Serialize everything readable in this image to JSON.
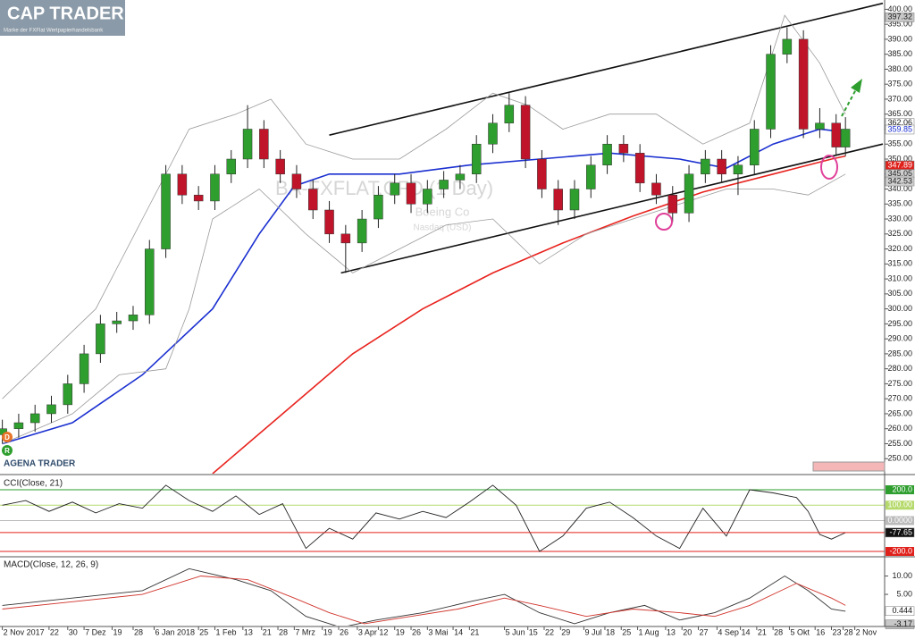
{
  "header": {
    "logo": "CAP TRADER",
    "tagline": "Marke der FXFlat Wertpapierhandelsbank"
  },
  "watermark": {
    "symbol": "BA-FXFLAT.CFD (1 Day)",
    "name": "Boeing Co",
    "exchange": "Nasdaq (USD)"
  },
  "branding": "AGENA TRADER",
  "badges": [
    "D",
    "R"
  ],
  "chart_data": [
    {
      "type": "candlestick",
      "up_color": "#2e9e2e",
      "down_color": "#c0142a",
      "x": [
        0,
        7,
        14,
        21,
        28,
        35,
        42,
        49,
        56,
        63,
        70,
        77,
        84,
        91,
        98,
        105,
        112,
        119,
        126,
        133,
        140,
        147,
        154,
        161,
        168,
        175,
        182,
        189,
        196,
        203,
        210,
        217,
        224,
        231,
        238,
        245,
        252,
        259,
        266,
        273,
        280,
        287,
        294,
        301,
        308,
        315,
        322,
        329,
        336,
        343,
        350,
        357,
        361
      ],
      "open": [
        258,
        260,
        262,
        265,
        268,
        275,
        285,
        295,
        296,
        298,
        320,
        345,
        338,
        336,
        345,
        350,
        360,
        350,
        345,
        340,
        333,
        325,
        322,
        330,
        338,
        342,
        335,
        340,
        343,
        345,
        355,
        362,
        368,
        350,
        340,
        333,
        340,
        348,
        355,
        352,
        342,
        338,
        332,
        345,
        350,
        345,
        348,
        360,
        385,
        390,
        360,
        362,
        354
      ],
      "high": [
        263,
        265,
        268,
        271,
        278,
        288,
        298,
        299,
        301,
        323,
        348,
        348,
        341,
        348,
        353,
        368,
        363,
        353,
        348,
        343,
        336,
        328,
        333,
        341,
        345,
        345,
        343,
        346,
        348,
        358,
        365,
        372,
        371,
        353,
        343,
        343,
        351,
        358,
        358,
        355,
        345,
        341,
        348,
        353,
        353,
        351,
        363,
        388,
        394,
        393,
        367,
        365,
        364
      ],
      "low": [
        255,
        257,
        259,
        262,
        265,
        272,
        282,
        292,
        293,
        295,
        317,
        335,
        333,
        333,
        342,
        347,
        347,
        342,
        337,
        330,
        322,
        312,
        319,
        327,
        335,
        332,
        332,
        337,
        340,
        342,
        352,
        359,
        347,
        337,
        328,
        330,
        337,
        345,
        349,
        339,
        335,
        329,
        329,
        342,
        342,
        338,
        345,
        357,
        382,
        357,
        357,
        351,
        351
      ],
      "close": [
        260,
        262,
        265,
        268,
        275,
        285,
        295,
        296,
        298,
        320,
        345,
        338,
        336,
        345,
        350,
        360,
        350,
        345,
        340,
        333,
        325,
        322,
        330,
        338,
        342,
        335,
        340,
        343,
        345,
        355,
        362,
        368,
        350,
        340,
        333,
        340,
        348,
        355,
        352,
        342,
        338,
        332,
        345,
        350,
        345,
        348,
        360,
        385,
        390,
        360,
        362,
        354,
        360
      ],
      "overlays": [
        {
          "color": "#1a2fd0",
          "x": [
            0,
            30,
            60,
            90,
            110,
            125,
            140,
            170,
            200,
            230,
            260,
            290,
            310,
            330,
            350,
            361
          ],
          "values": [
            255,
            262,
            278,
            300,
            325,
            341,
            345,
            345,
            348,
            350,
            352,
            350,
            347,
            355,
            360,
            359
          ]
        },
        {
          "color": "#e8231e",
          "x": [
            90,
            120,
            150,
            180,
            210,
            240,
            270,
            300,
            330,
            355,
            361
          ],
          "values": [
            245,
            265,
            285,
            300,
            312,
            322,
            331,
            339,
            345,
            350,
            351
          ]
        },
        {
          "color": "#9a9a9a",
          "x": [
            0,
            40,
            60,
            80,
            100,
            115,
            130,
            150,
            170,
            190,
            210,
            225,
            240,
            260,
            280,
            300,
            320,
            335,
            350,
            361
          ],
          "values": [
            270,
            300,
            330,
            360,
            365,
            370,
            355,
            350,
            350,
            360,
            372,
            368,
            360,
            365,
            365,
            355,
            362,
            398,
            382,
            365
          ]
        },
        {
          "color": "#9a9a9a",
          "x": [
            0,
            30,
            50,
            70,
            80,
            90,
            110,
            130,
            150,
            170,
            190,
            210,
            230,
            250,
            270,
            290,
            310,
            330,
            345,
            361
          ],
          "values": [
            255,
            265,
            278,
            280,
            300,
            330,
            340,
            325,
            312,
            320,
            328,
            330,
            315,
            325,
            330,
            335,
            340,
            340,
            338,
            345
          ]
        }
      ],
      "trendlines": [
        {
          "color": "#111111",
          "x": [
            140,
            377
          ],
          "values": [
            358,
            402
          ]
        },
        {
          "color": "#111111",
          "x": [
            145,
            377
          ],
          "values": [
            312,
            355
          ]
        }
      ],
      "xlim": [
        -1,
        377
      ],
      "xticks": [
        {
          "value": 0,
          "label": "2 Nov 2017"
        },
        {
          "value": 20,
          "label": "22"
        },
        {
          "value": 28,
          "label": "30"
        },
        {
          "value": 35,
          "label": "7 Dez"
        },
        {
          "value": 47,
          "label": "19"
        },
        {
          "value": 56,
          "label": "28"
        },
        {
          "value": 65,
          "label": "6 Jan 2018"
        },
        {
          "value": 84,
          "label": "25"
        },
        {
          "value": 91,
          "label": "1 Feb"
        },
        {
          "value": 103,
          "label": "13"
        },
        {
          "value": 111,
          "label": "21"
        },
        {
          "value": 118,
          "label": "28"
        },
        {
          "value": 125,
          "label": "7 Mrz"
        },
        {
          "value": 137,
          "label": "19"
        },
        {
          "value": 144,
          "label": "26"
        },
        {
          "value": 152,
          "label": "3 Apr"
        },
        {
          "value": 161,
          "label": "12"
        },
        {
          "value": 168,
          "label": "19"
        },
        {
          "value": 175,
          "label": "26"
        },
        {
          "value": 182,
          "label": "3 Mai"
        },
        {
          "value": 193,
          "label": "14"
        },
        {
          "value": 200,
          "label": "21"
        },
        {
          "value": 215,
          "label": "5 Jun"
        },
        {
          "value": 225,
          "label": "15"
        },
        {
          "value": 232,
          "label": "22"
        },
        {
          "value": 239,
          "label": "29"
        },
        {
          "value": 249,
          "label": "9 Jul"
        },
        {
          "value": 258,
          "label": "18"
        },
        {
          "value": 265,
          "label": "25"
        },
        {
          "value": 272,
          "label": "1 Aug"
        },
        {
          "value": 284,
          "label": "13"
        },
        {
          "value": 291,
          "label": "20"
        },
        {
          "value": 298,
          "label": "27"
        },
        {
          "value": 306,
          "label": "4 Sep"
        },
        {
          "value": 316,
          "label": "14"
        },
        {
          "value": 323,
          "label": "21"
        },
        {
          "value": 330,
          "label": "28"
        },
        {
          "value": 337,
          "label": "5 Okt"
        },
        {
          "value": 348,
          "label": "16"
        },
        {
          "value": 355,
          "label": "23"
        },
        {
          "value": 360,
          "label": "28"
        },
        {
          "value": 365,
          "label": "2 Nov"
        }
      ],
      "ylim": [
        245,
        402.5
      ],
      "yticks": [
        {
          "value": 250,
          "label": "250.00"
        },
        {
          "value": 255,
          "label": "255.00"
        },
        {
          "value": 260,
          "label": "260.00"
        },
        {
          "value": 265,
          "label": "265.00"
        },
        {
          "value": 270,
          "label": "270.00"
        },
        {
          "value": 275,
          "label": "275.00"
        },
        {
          "value": 280,
          "label": "280.00"
        },
        {
          "value": 285,
          "label": "285.00"
        },
        {
          "value": 290,
          "label": "290.00"
        },
        {
          "value": 295,
          "label": "295.00"
        },
        {
          "value": 300,
          "label": "300.00"
        },
        {
          "value": 305,
          "label": "305.00"
        },
        {
          "value": 310,
          "label": "310.00"
        },
        {
          "value": 315,
          "label": "315.00"
        },
        {
          "value": 320,
          "label": "320.00"
        },
        {
          "value": 325,
          "label": "325.00"
        },
        {
          "value": 330,
          "label": "330.00"
        },
        {
          "value": 335,
          "label": "335.00"
        },
        {
          "value": 340,
          "label": "340.00"
        },
        {
          "value": 345,
          "label": "345.00"
        },
        {
          "value": 350,
          "label": "350.00"
        },
        {
          "value": 355,
          "label": "355.00"
        },
        {
          "value": 360,
          "label": "360.00"
        },
        {
          "value": 365,
          "label": "365.00"
        },
        {
          "value": 370,
          "label": "370.00"
        },
        {
          "value": 375,
          "label": "375.00"
        },
        {
          "value": 380,
          "label": "380.00"
        },
        {
          "value": 385,
          "label": "385.00"
        },
        {
          "value": 390,
          "label": "390.00"
        },
        {
          "value": 395,
          "label": "395.00"
        },
        {
          "value": 400,
          "label": "400.00"
        }
      ],
      "price_markers": [
        {
          "value": 397.32,
          "label": "397.32",
          "color": "#c8c8c8",
          "text_color": "#222222"
        },
        {
          "value": 362.06,
          "label": "362.06",
          "color": "#ffffff",
          "text_color": "#111111"
        },
        {
          "value": 359.85,
          "label": "359.85",
          "color": "#ffffff",
          "text_color": "#1a2fd0"
        },
        {
          "value": 347.89,
          "label": "347.89",
          "color": "#e0201b",
          "text_color": "#ffffff"
        },
        {
          "value": 345.05,
          "label": "345.05",
          "color": "#d0d0d0",
          "text_color": "#222222"
        },
        {
          "value": 342.53,
          "label": "342.53",
          "color": "#d0d0d0",
          "text_color": "#222222"
        }
      ]
    },
    {
      "type": "line",
      "title": "CCI(Close, 21)",
      "color": "#222222",
      "x": [
        0,
        10,
        20,
        30,
        40,
        50,
        60,
        70,
        80,
        90,
        100,
        110,
        120,
        130,
        140,
        150,
        160,
        170,
        180,
        190,
        200,
        210,
        220,
        230,
        240,
        250,
        260,
        270,
        280,
        290,
        300,
        310,
        320,
        330,
        340,
        345,
        350,
        355,
        361
      ],
      "values": [
        100,
        130,
        60,
        120,
        50,
        110,
        80,
        230,
        130,
        60,
        160,
        40,
        110,
        -180,
        -50,
        -120,
        50,
        10,
        60,
        20,
        120,
        230,
        100,
        -200,
        -100,
        80,
        120,
        20,
        -100,
        -180,
        80,
        -100,
        200,
        180,
        150,
        60,
        -90,
        -120,
        -78
      ],
      "ylim": [
        -229,
        293
      ],
      "yticks": [
        {
          "value": 200,
          "label": "200.0"
        },
        {
          "value": 100,
          "label": "100.00"
        },
        {
          "value": 0,
          "label": "0.0000"
        },
        {
          "value": -200,
          "label": "-200.0"
        }
      ],
      "tick_colors": [
        "#2e9e2e",
        "#b5d96b",
        "#bbbbbb",
        "#e0201b"
      ],
      "markers": [
        {
          "value": -77.65,
          "label": "-77.65",
          "color": "#111111",
          "text_color": "#ffffff"
        }
      ]
    },
    {
      "type": "line",
      "title": "MACD(Close, 12, 26, 9)",
      "series": [
        {
          "color": "#333333",
          "x": [
            0,
            30,
            60,
            80,
            100,
            115,
            130,
            145,
            160,
            180,
            200,
            215,
            230,
            245,
            260,
            275,
            290,
            305,
            320,
            335,
            345,
            355,
            361
          ],
          "values": [
            2,
            4,
            6,
            12,
            9,
            6,
            -1,
            -4,
            -2,
            0,
            3,
            5,
            0,
            -3,
            0,
            2,
            -2,
            0,
            4,
            10,
            6,
            1,
            0.4
          ]
        },
        {
          "color": "#d0322a",
          "x": [
            0,
            30,
            60,
            85,
            105,
            125,
            140,
            155,
            175,
            195,
            215,
            230,
            250,
            270,
            290,
            305,
            320,
            340,
            355,
            361
          ],
          "values": [
            1,
            3,
            5,
            10,
            9,
            4,
            0,
            -3,
            -1,
            1,
            4,
            2,
            -1,
            1,
            0,
            -1,
            2,
            8,
            4,
            2
          ]
        }
      ],
      "ylim": [
        -4,
        15
      ],
      "yticks": [
        {
          "value": 10,
          "label": "10.00"
        },
        {
          "value": 5,
          "label": "5.00"
        }
      ],
      "markers": [
        {
          "value": 0.444,
          "label": "0.444",
          "color": "#ffffff",
          "text_color": "#111111"
        },
        {
          "value": -3.17,
          "label": "-3.17",
          "color": "#c8c8c8",
          "text_color": "#111111"
        }
      ]
    }
  ]
}
